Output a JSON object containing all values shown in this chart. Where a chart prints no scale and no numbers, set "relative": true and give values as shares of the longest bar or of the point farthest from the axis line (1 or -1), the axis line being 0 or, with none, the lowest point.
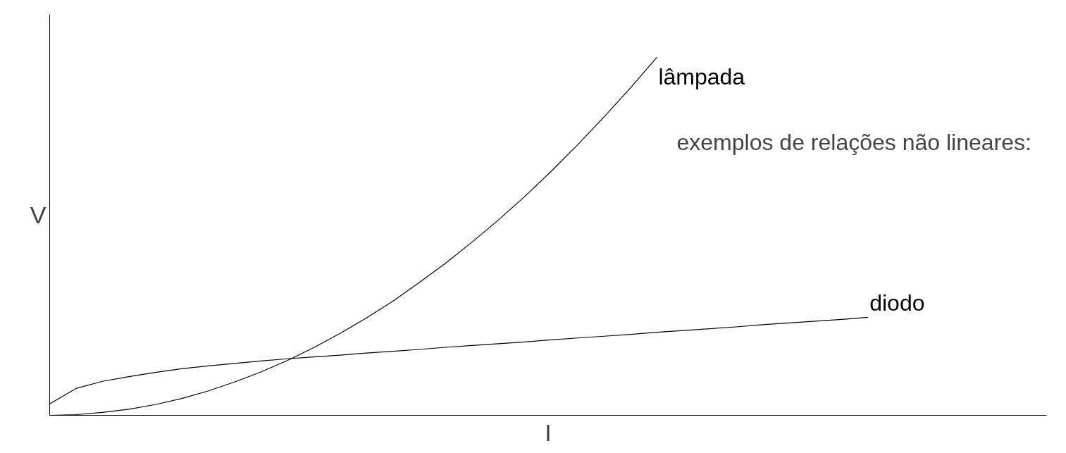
{
  "chart_data": {
    "type": "line",
    "relative": true,
    "xlabel": "I",
    "ylabel": "V",
    "tick_labels": false,
    "legend": false,
    "marker": "none",
    "line_style": "solid",
    "annotations": [
      "exemplos de relações não lineares:"
    ],
    "categories": [
      null,
      null,
      null,
      null,
      null,
      null,
      null,
      null,
      null,
      null,
      null,
      null,
      null,
      null,
      null,
      null,
      null,
      null,
      null,
      null,
      null,
      null,
      null,
      null,
      null,
      null,
      null,
      null,
      null,
      null,
      null,
      null
    ],
    "series": [
      {
        "name": "lâmpada",
        "color": "#000000",
        "values": [
          0,
          0.002,
          0.008,
          0.017,
          0.03,
          0.047,
          0.068,
          0.093,
          0.121,
          0.153,
          0.189,
          0.229,
          0.272,
          0.319,
          0.371,
          0.425,
          0.484,
          0.546,
          0.612,
          0.682,
          0.756,
          0.834,
          0.915,
          1,
          null,
          null,
          null,
          null,
          null,
          null,
          null,
          null
        ]
      },
      {
        "name": "diodo",
        "color": "#000000",
        "values": [
          0.032,
          0.075,
          0.095,
          0.108,
          0.12,
          0.13,
          0.138,
          0.145,
          0.152,
          0.158,
          0.163,
          0.168,
          0.174,
          0.179,
          0.184,
          0.19,
          0.195,
          0.2,
          0.205,
          0.211,
          0.216,
          0.221,
          0.226,
          0.232,
          0.237,
          0.242,
          0.247,
          0.253,
          0.258,
          0.263,
          0.268,
          0.274
        ]
      }
    ]
  }
}
